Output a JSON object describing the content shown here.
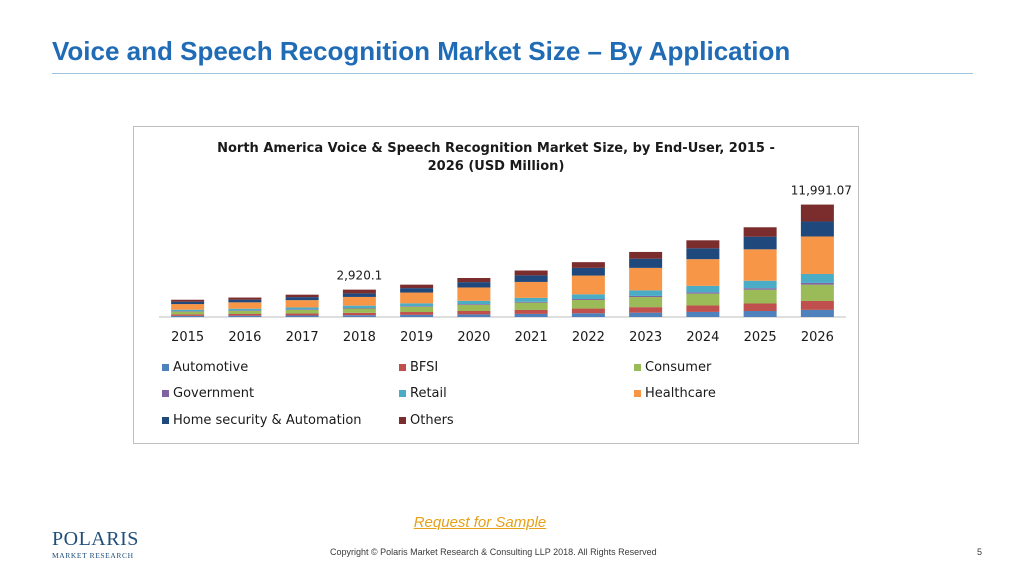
{
  "slide": {
    "title": "Voice and Speech Recognition Market Size – By Application",
    "request_link": "Request for Sample",
    "copyright": "Copyright © Polaris Market Research & Consulting LLP 2018. All Rights Reserved",
    "page_number": "5",
    "logo": {
      "main": "POLARIS",
      "sub": "MARKET RESEARCH",
      "title_color": "#1f6bb5"
    }
  },
  "chart_data": {
    "type": "bar",
    "stacked": true,
    "title_lines": [
      "North America Voice & Speech Recognition Market Size, by End-User,  2015 -",
      "2026 (USD Million)"
    ],
    "categories": [
      "2015",
      "2016",
      "2017",
      "2018",
      "2019",
      "2020",
      "2021",
      "2022",
      "2023",
      "2024",
      "2025",
      "2026"
    ],
    "series": [
      {
        "name": "Automotive",
        "color": "#4f81bd",
        "values": [
          120,
          140,
          160,
          190,
          230,
          280,
          330,
          400,
          460,
          540,
          640,
          760
        ]
      },
      {
        "name": "BFSI",
        "color": "#c0504d",
        "values": [
          160,
          180,
          210,
          250,
          300,
          360,
          420,
          500,
          590,
          690,
          800,
          950
        ]
      },
      {
        "name": "Consumer",
        "color": "#9bbb59",
        "values": [
          300,
          340,
          390,
          460,
          560,
          660,
          780,
          920,
          1080,
          1260,
          1470,
          1740
        ]
      },
      {
        "name": "Government",
        "color": "#8064a2",
        "values": [
          40,
          45,
          50,
          60,
          70,
          80,
          90,
          100,
          120,
          140,
          160,
          190
        ]
      },
      {
        "name": "Retail",
        "color": "#4bacc6",
        "values": [
          160,
          180,
          210,
          250,
          300,
          350,
          420,
          500,
          590,
          690,
          800,
          950
        ]
      },
      {
        "name": "Healthcare",
        "color": "#f79646",
        "values": [
          600,
          680,
          780,
          930,
          1150,
          1420,
          1700,
          2000,
          2400,
          2850,
          3350,
          4000
        ]
      },
      {
        "name": "Home security & Automation",
        "color": "#1f497d",
        "values": [
          250,
          280,
          320,
          380,
          470,
          570,
          700,
          820,
          980,
          1160,
          1350,
          1600
        ]
      },
      {
        "name": "Others",
        "color": "#7b2c2c",
        "values": [
          210,
          230,
          260,
          400,
          370,
          440,
          520,
          610,
          720,
          850,
          1000,
          1801
        ]
      }
    ],
    "annotations": [
      {
        "category": "2018",
        "text": "2,920.1"
      },
      {
        "category": "2026",
        "text": "11,991.07"
      }
    ],
    "ylim": [
      0,
      12800
    ],
    "grid": false,
    "y_axis_visible": false,
    "legend_placement": "bottom"
  }
}
